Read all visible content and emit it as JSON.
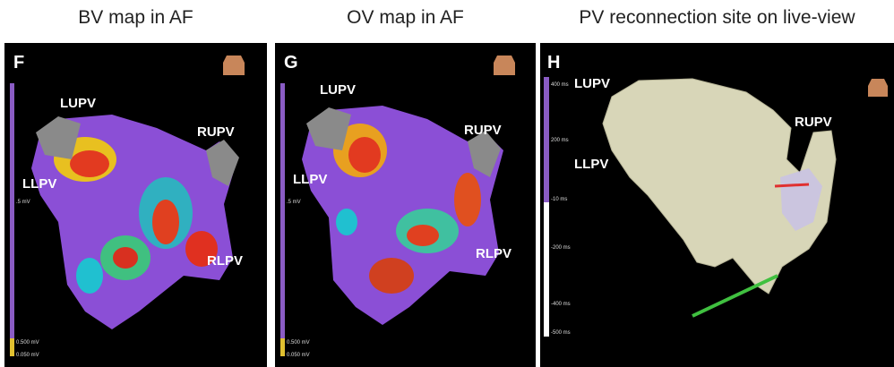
{
  "panels": [
    {
      "title": "BV map in AF",
      "letter": "F",
      "labels": [
        "LUPV",
        "RUPV",
        "LLPV",
        "RLPV"
      ],
      "scale_labels": [
        ".5 mV",
        "0.500 mV",
        "0.050 mV"
      ]
    },
    {
      "title": "OV map in AF",
      "letter": "G",
      "labels": [
        "LUPV",
        "RUPV",
        "LLPV",
        "RLPV"
      ],
      "scale_labels": [
        ".5 mV",
        "0.500 mV",
        "0.050 mV"
      ]
    },
    {
      "title": "PV reconnection site on live-view",
      "letter": "H",
      "labels": [
        "LUPV",
        "RUPV",
        "LLPV"
      ],
      "scale_labels": [
        "400 ms",
        "200 ms",
        "-10 ms",
        "-200 ms",
        "-400 ms",
        "-500 ms"
      ]
    }
  ]
}
